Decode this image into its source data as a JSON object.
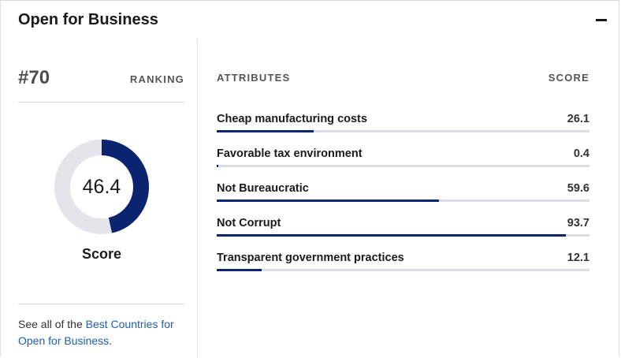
{
  "card": {
    "title": "Open for Business",
    "collapse_icon": "minus-icon"
  },
  "ranking": {
    "rank": "#70",
    "label": "RANKING",
    "score_value": "46.4",
    "score_fraction": 0.464,
    "score_caption": "Score",
    "ring_color": "#0a2470",
    "ring_track_color": "#e3e5ea"
  },
  "see_all": {
    "prefix": "See all of the ",
    "link_text": "Best Countries for Open for Business",
    "suffix": "."
  },
  "attributes": {
    "header_label": "ATTRIBUTES",
    "header_score": "SCORE",
    "bar_color": "#0a2470",
    "items": [
      {
        "name": "Cheap manufacturing costs",
        "score": "26.1",
        "value": 26.1
      },
      {
        "name": "Favorable tax environment",
        "score": "0.4",
        "value": 0.4
      },
      {
        "name": "Not Bureaucratic",
        "score": "59.6",
        "value": 59.6
      },
      {
        "name": "Not Corrupt",
        "score": "93.7",
        "value": 93.7
      },
      {
        "name": "Transparent government practices",
        "score": "12.1",
        "value": 12.1
      }
    ]
  }
}
